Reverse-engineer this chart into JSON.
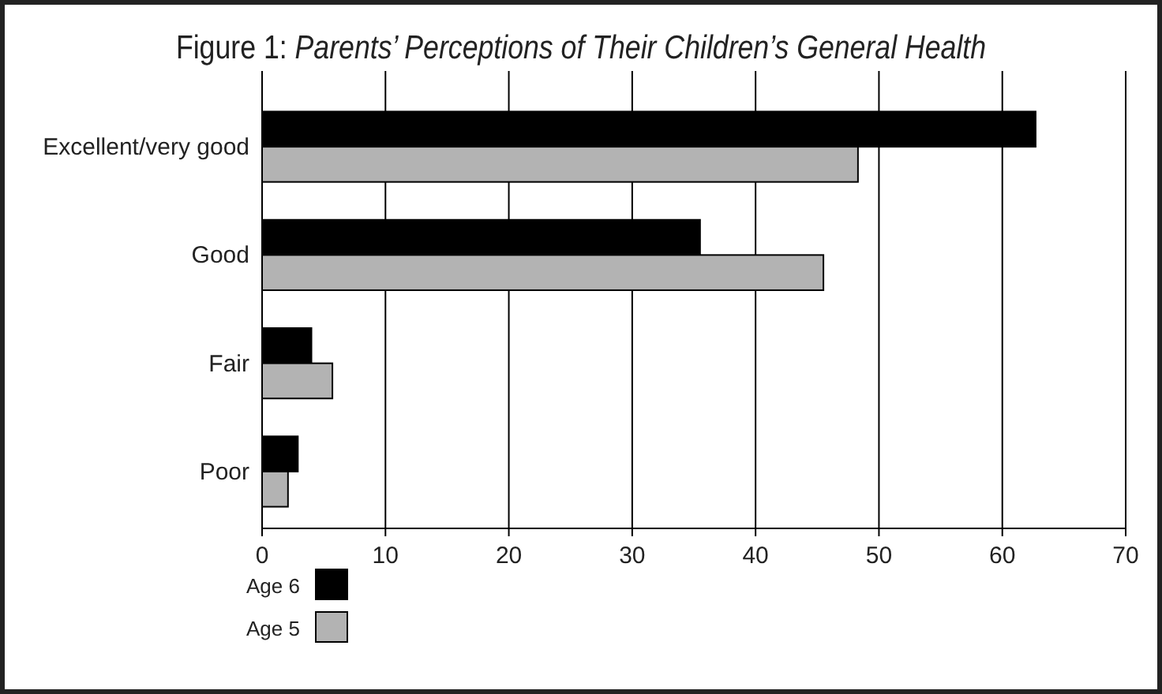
{
  "chart_data": {
    "type": "bar",
    "orientation": "horizontal",
    "title": "Figure 1: Parents’ Perceptions of Their Children’s General Health",
    "categories": [
      "Excellent/very good",
      "Good",
      "Fair",
      "Poor"
    ],
    "series": [
      {
        "name": "Age 6",
        "color": "#000000",
        "values": [
          62.7,
          35.5,
          4.0,
          2.9
        ]
      },
      {
        "name": "Age 5",
        "color": "#b3b3b3",
        "values": [
          48.3,
          45.5,
          5.7,
          2.1
        ]
      }
    ],
    "xlim": [
      0,
      70
    ],
    "xticks": [
      0,
      10,
      20,
      30,
      40,
      50,
      60,
      70
    ],
    "grid": "x",
    "legend": "bottom left"
  }
}
